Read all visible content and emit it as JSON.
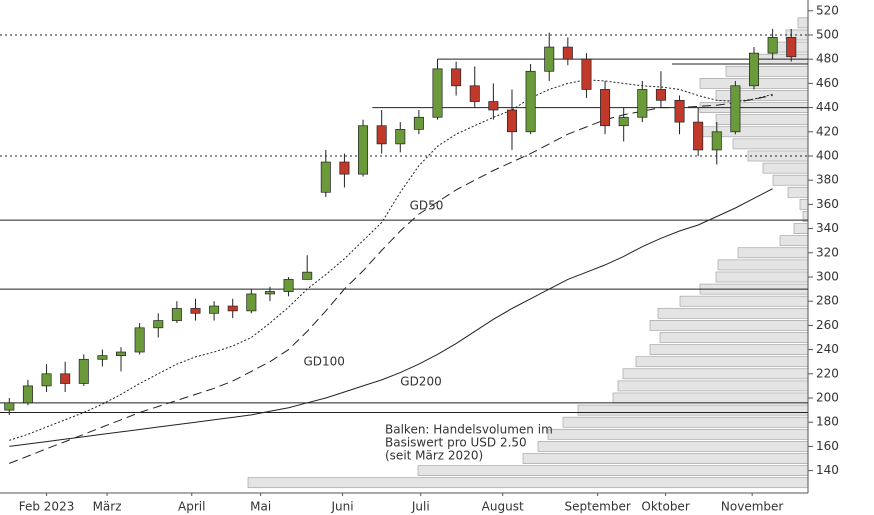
{
  "chart_data": {
    "type": "candlestick",
    "ylim": [
      121.5,
      528.9
    ],
    "yticks": [
      140,
      160,
      180,
      200,
      220,
      240,
      260,
      280,
      300,
      320,
      340,
      360,
      380,
      400,
      420,
      440,
      460,
      480,
      500,
      520
    ],
    "xlim": [
      0,
      43.4
    ],
    "xticks": [
      {
        "value": 2.5,
        "label": "Feb 2023"
      },
      {
        "value": 5.75,
        "label": "März"
      },
      {
        "value": 10.3,
        "label": "April"
      },
      {
        "value": 14,
        "label": "Mai"
      },
      {
        "value": 18.4,
        "label": "Juni"
      },
      {
        "value": 22.6,
        "label": "Juli"
      },
      {
        "value": 27,
        "label": "August"
      },
      {
        "value": 32.1,
        "label": "September"
      },
      {
        "value": 35.75,
        "label": "Oktober"
      },
      {
        "value": 40.4,
        "label": "November"
      }
    ],
    "up_color": "#6a9a3a",
    "down_color": "#c0392b",
    "candles": {
      "open": [
        190,
        196,
        210,
        220,
        212,
        232,
        235,
        238,
        258,
        264,
        274,
        270,
        276,
        272,
        286,
        288,
        298,
        370,
        395,
        385,
        425,
        410,
        422,
        432,
        472,
        458,
        445,
        438,
        420,
        470,
        490,
        480,
        455,
        425,
        432,
        455,
        446,
        428,
        405,
        420,
        458,
        485,
        498
      ],
      "high": [
        200,
        215,
        228,
        230,
        236,
        240,
        242,
        262,
        270,
        280,
        282,
        280,
        282,
        290,
        292,
        300,
        318,
        405,
        402,
        430,
        438,
        428,
        438,
        480,
        478,
        474,
        460,
        455,
        476,
        502,
        498,
        485,
        462,
        440,
        462,
        470,
        450,
        440,
        428,
        462,
        490,
        505,
        505
      ],
      "low": [
        186,
        194,
        205,
        205,
        210,
        226,
        222,
        236,
        250,
        262,
        264,
        264,
        266,
        270,
        280,
        284,
        298,
        366,
        374,
        383,
        402,
        403,
        418,
        430,
        450,
        440,
        430,
        405,
        418,
        462,
        475,
        448,
        418,
        412,
        428,
        440,
        418,
        400,
        393,
        418,
        455,
        480,
        478
      ],
      "close": [
        196,
        210,
        220,
        212,
        232,
        235,
        238,
        258,
        264,
        274,
        270,
        276,
        272,
        286,
        288,
        298,
        304,
        395,
        385,
        425,
        410,
        422,
        432,
        472,
        458,
        445,
        438,
        420,
        470,
        490,
        480,
        455,
        425,
        432,
        455,
        446,
        428,
        405,
        420,
        458,
        485,
        498,
        482
      ]
    },
    "lines": [
      {
        "name": "GD50",
        "style": "dotted",
        "values": [
          165,
          170,
          176,
          182,
          188,
          195,
          203,
          212,
          220,
          228,
          234,
          238,
          243,
          250,
          262,
          275,
          290,
          302,
          315,
          330,
          345,
          370,
          392,
          408,
          418,
          425,
          432,
          438,
          448,
          455,
          460,
          463,
          462,
          460,
          458,
          457,
          455,
          450,
          446,
          445,
          447,
          451,
          null
        ]
      },
      {
        "name": "GD100",
        "style": "dashed",
        "values": [
          146,
          152,
          158,
          164,
          170,
          176,
          182,
          188,
          193,
          198,
          203,
          208,
          214,
          222,
          230,
          240,
          255,
          272,
          290,
          305,
          322,
          338,
          352,
          362,
          372,
          380,
          388,
          395,
          402,
          410,
          418,
          424,
          430,
          434,
          437,
          440,
          440,
          441,
          442,
          444,
          447,
          450,
          null
        ]
      },
      {
        "name": "GD200",
        "style": "solid",
        "values": [
          160,
          162,
          164,
          166,
          168,
          170,
          172,
          174,
          176,
          178,
          180,
          182,
          184,
          186,
          189,
          192,
          196,
          200,
          205,
          210,
          215,
          221,
          228,
          236,
          245,
          255,
          265,
          274,
          282,
          290,
          298,
          304,
          310,
          317,
          325,
          332,
          338,
          343,
          350,
          357,
          365,
          373,
          null
        ]
      }
    ],
    "levels": [
      {
        "value": 500,
        "style": "dotted",
        "start": 0
      },
      {
        "value": 400,
        "style": "dotted",
        "start": 0
      },
      {
        "value": 480,
        "style": "solid",
        "start": 23.5
      },
      {
        "value": 476,
        "style": "solid",
        "start": 36.1
      },
      {
        "value": 440,
        "style": "solid",
        "start": 20
      },
      {
        "value": 347,
        "style": "solid",
        "start": 0
      },
      {
        "value": 290,
        "style": "solid",
        "start": 0
      },
      {
        "value": 196,
        "style": "solid",
        "start": 0
      },
      {
        "value": 188,
        "style": "solid",
        "start": 0
      }
    ],
    "volume_profile": {
      "bins": [
        125,
        135,
        145,
        155,
        165,
        175,
        185,
        195,
        205,
        215,
        225,
        235,
        245,
        255,
        265,
        275,
        285,
        295,
        305,
        315,
        325,
        335,
        345,
        355,
        365,
        375,
        385,
        395,
        405,
        415,
        425,
        435,
        445,
        455,
        465,
        475,
        485,
        495,
        505,
        515
      ],
      "values": [
        560,
        390,
        285,
        270,
        260,
        245,
        230,
        195,
        190,
        185,
        172,
        158,
        148,
        158,
        150,
        128,
        108,
        92,
        90,
        70,
        28,
        14,
        5,
        8,
        20,
        35,
        45,
        60,
        75,
        108,
        92,
        108,
        92,
        108,
        82,
        52,
        36,
        22,
        10
      ]
    },
    "annotation": [
      "Balken: Handelsvolumen im",
      "Basiswert pro USD 2.50",
      "(seit März 2020)"
    ]
  }
}
